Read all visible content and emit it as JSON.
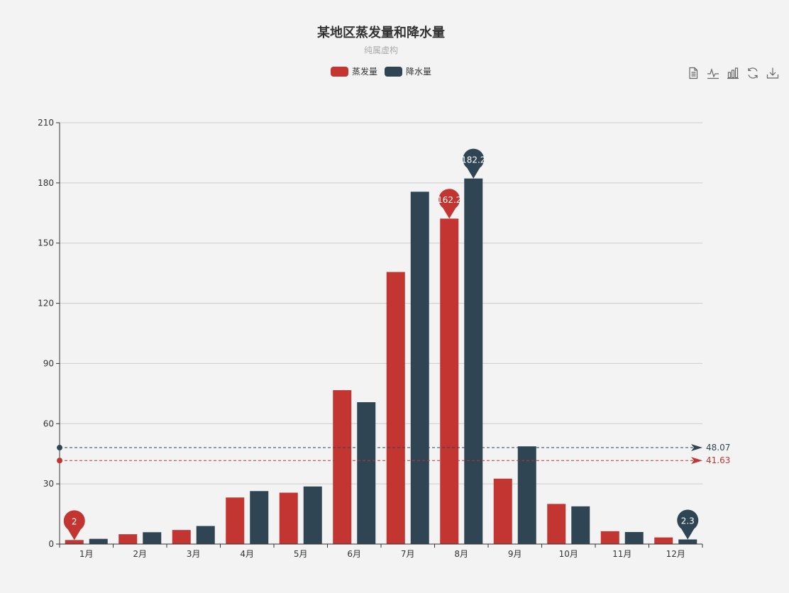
{
  "title": "某地区蒸发量和降水量",
  "subtitle": "纯属虚构",
  "legend": [
    {
      "name": "蒸发量",
      "color": "#c23531"
    },
    {
      "name": "降水量",
      "color": "#2f4554"
    }
  ],
  "toolbox": [
    {
      "icon": "data-view-icon"
    },
    {
      "icon": "line-chart-icon"
    },
    {
      "icon": "bar-chart-icon"
    },
    {
      "icon": "restore-icon"
    },
    {
      "icon": "save-image-icon"
    }
  ],
  "chart_data": {
    "type": "bar",
    "categories": [
      "1月",
      "2月",
      "3月",
      "4月",
      "5月",
      "6月",
      "7月",
      "8月",
      "9月",
      "10月",
      "11月",
      "12月"
    ],
    "series": [
      {
        "name": "蒸发量",
        "color": "#c23531",
        "values": [
          2.0,
          4.9,
          7.0,
          23.2,
          25.6,
          76.7,
          135.6,
          162.2,
          32.6,
          20.0,
          6.4,
          3.3
        ],
        "markPoints": [
          {
            "label": "2",
            "index": 0
          },
          {
            "label": "162.2",
            "index": 7
          }
        ],
        "markLine": {
          "label": "41.63",
          "value": 41.63
        }
      },
      {
        "name": "降水量",
        "color": "#2f4554",
        "values": [
          2.6,
          5.9,
          9.0,
          26.4,
          28.7,
          70.7,
          175.6,
          182.2,
          48.7,
          18.8,
          6.0,
          2.3
        ],
        "markPoints": [
          {
            "label": "182.2",
            "index": 7
          },
          {
            "label": "2.3",
            "index": 11
          }
        ],
        "markLine": {
          "label": "48.07",
          "value": 48.07
        }
      }
    ],
    "ylim": [
      0,
      210
    ],
    "yticks": [
      "0",
      "30",
      "60",
      "90",
      "120",
      "150",
      "180",
      "210"
    ],
    "grid": true,
    "legend_position": "top-center"
  }
}
